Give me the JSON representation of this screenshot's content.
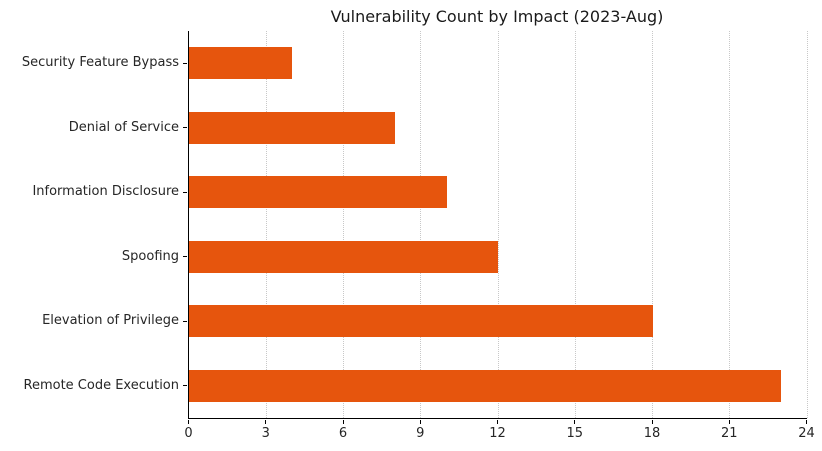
{
  "chart_data": {
    "type": "bar",
    "orientation": "horizontal",
    "title": "Vulnerability Count by Impact (2023-Aug)",
    "categories": [
      "Security Feature Bypass",
      "Denial of Service",
      "Information Disclosure",
      "Spoofing",
      "Elevation of Privilege",
      "Remote Code Execution"
    ],
    "values": [
      4,
      8,
      10,
      12,
      18,
      23
    ],
    "xlabel": "",
    "ylabel": "",
    "xlim": [
      0,
      24
    ],
    "xticks": [
      0,
      3,
      6,
      9,
      12,
      15,
      18,
      21,
      24
    ],
    "bar_color": "#E6550D",
    "bar_height_fraction": 0.5,
    "grid": {
      "axis": "x",
      "style": "dotted",
      "color": "#c8c8c8"
    },
    "legend_position": "none",
    "spines": {
      "left": true,
      "bottom": true,
      "top": false,
      "right": false
    }
  }
}
